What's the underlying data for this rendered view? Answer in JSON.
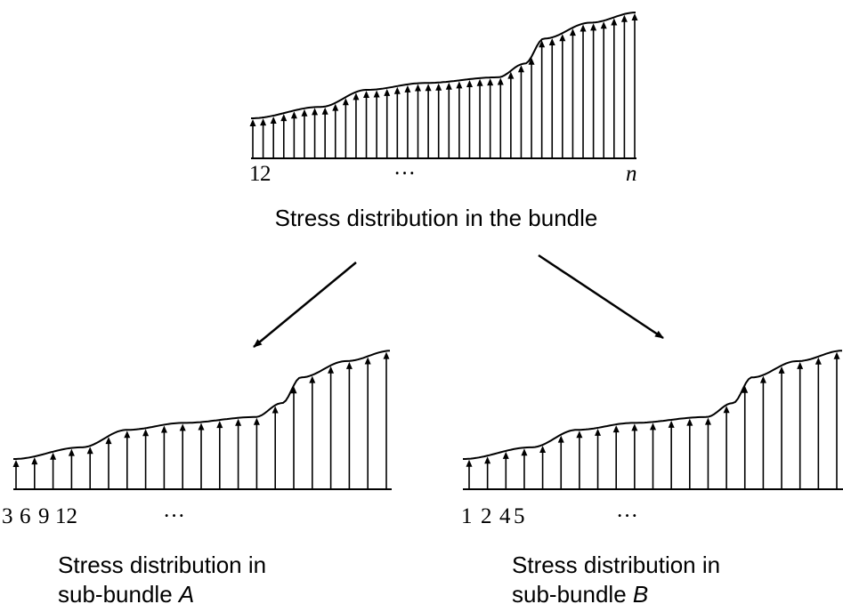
{
  "top": {
    "indices": [
      "1",
      "2"
    ],
    "ellipsis": "···",
    "last": "n",
    "caption": "Stress distribution in the bundle"
  },
  "sub_a": {
    "indices": [
      "3",
      "6",
      "9",
      "12"
    ],
    "ellipsis": "···",
    "caption_line1": "Stress distribution in",
    "caption_line2": "sub-bundle",
    "caption_italic": "A"
  },
  "sub_b": {
    "indices": [
      "1",
      "2",
      "4",
      "5"
    ],
    "ellipsis": "···",
    "caption_line1": "Stress distribution in",
    "caption_line2": "sub-bundle",
    "caption_italic": "B"
  }
}
